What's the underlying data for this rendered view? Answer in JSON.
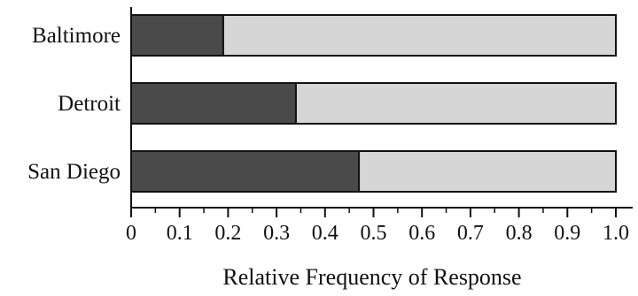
{
  "chart_data": {
    "type": "bar",
    "orientation": "horizontal",
    "stacked": true,
    "categories": [
      "Baltimore",
      "Detroit",
      "San Diego"
    ],
    "series": [
      {
        "values": [
          0.19,
          0.34,
          0.47
        ],
        "color": "#4a4a4a"
      },
      {
        "values": [
          0.81,
          0.66,
          0.53
        ],
        "color": "#d6d6d6"
      }
    ],
    "xlabel": "Relative Frequency of Response",
    "ylabel": "",
    "xlim": [
      0,
      1.0
    ],
    "x_ticks": [
      0,
      0.1,
      0.2,
      0.3,
      0.4,
      0.5,
      0.6,
      0.7,
      0.8,
      0.9,
      1.0
    ],
    "x_tick_labels": [
      "0",
      "0.1",
      "0.2",
      "0.3",
      "0.4",
      "0.5",
      "0.6",
      "0.7",
      "0.8",
      "0.9",
      "1.0"
    ],
    "grid": false,
    "legend": "none"
  }
}
